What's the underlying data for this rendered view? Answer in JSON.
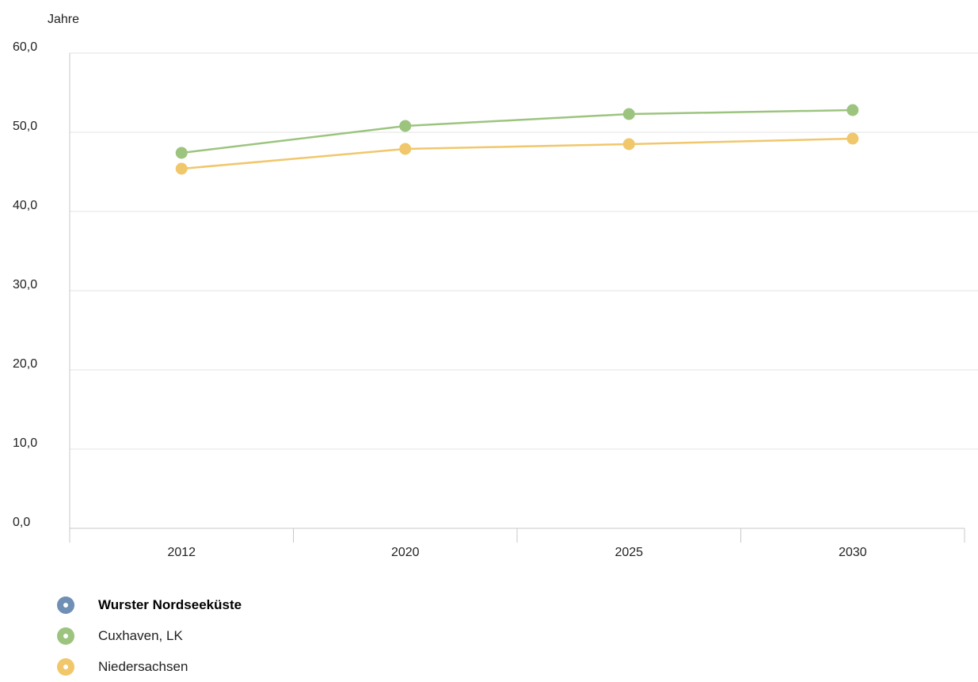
{
  "chart_data": {
    "type": "line",
    "unit_label": "Jahre",
    "categories": [
      "2012",
      "2020",
      "2025",
      "2030"
    ],
    "ylim": [
      0,
      60
    ],
    "y_ticks": [
      "0,0",
      "10,0",
      "20,0",
      "30,0",
      "40,0",
      "50,0",
      "60,0"
    ],
    "y_tick_values": [
      0,
      10,
      20,
      30,
      40,
      50,
      60
    ],
    "grid": true,
    "legend_position": "bottom-left",
    "series": [
      {
        "name": "Wurster Nordseeküste",
        "values": [
          null,
          null,
          null,
          null
        ],
        "color": "#6f8fb5"
      },
      {
        "name": "Cuxhaven, LK",
        "values": [
          47.4,
          50.8,
          52.3,
          52.8
        ],
        "color": "#9cc47f"
      },
      {
        "name": "Niedersachsen",
        "values": [
          45.4,
          47.9,
          48.5,
          49.2
        ],
        "color": "#f0c76b"
      }
    ]
  }
}
